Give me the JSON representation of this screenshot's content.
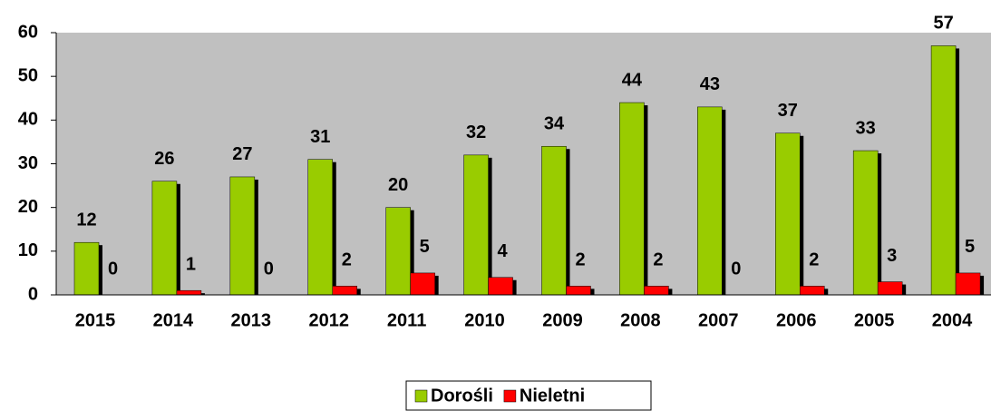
{
  "chart_data": {
    "type": "bar",
    "categories": [
      "2015",
      "2014",
      "2013",
      "2012",
      "2011",
      "2010",
      "2009",
      "2008",
      "2007",
      "2006",
      "2005",
      "2004"
    ],
    "series": [
      {
        "name": "Dorośli",
        "color": "#99cc00",
        "values": [
          12,
          26,
          27,
          31,
          20,
          32,
          34,
          44,
          43,
          37,
          33,
          57
        ]
      },
      {
        "name": "Nieletni",
        "color": "#ff0000",
        "values": [
          0,
          1,
          0,
          2,
          5,
          4,
          2,
          2,
          0,
          2,
          3,
          5
        ]
      }
    ],
    "ylim": [
      0,
      60
    ],
    "yticks": [
      0,
      10,
      20,
      30,
      40,
      50,
      60
    ],
    "legend": "bottom",
    "plot_background": "#c0c0c0"
  }
}
